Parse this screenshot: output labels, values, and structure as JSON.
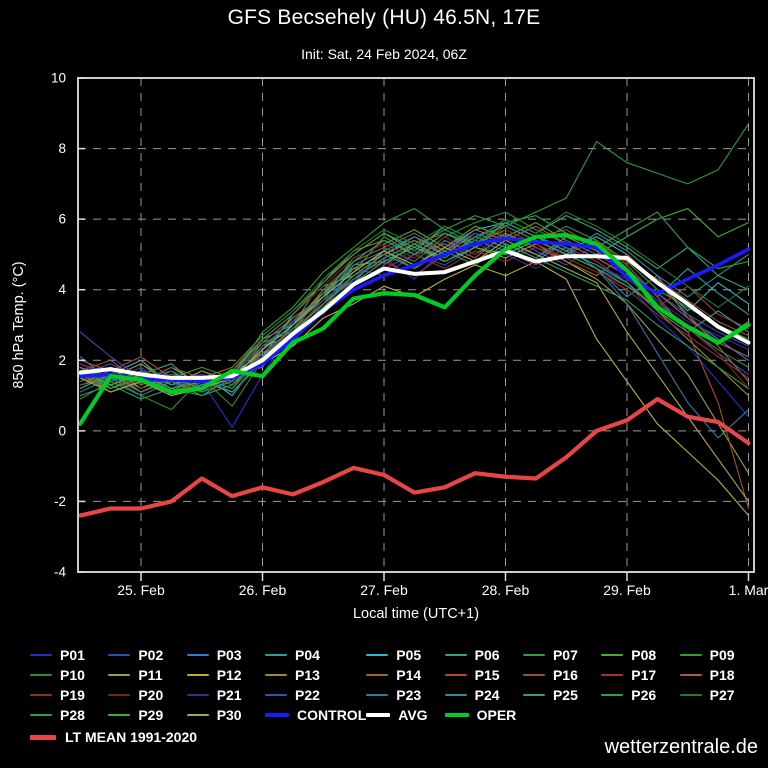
{
  "title": "GFS Becsehely (HU) 46.5N, 17E",
  "subtitle": "Init: Sat, 24 Feb 2024, 06Z",
  "watermark": "wetterzentrale.de",
  "chart_data": {
    "type": "line",
    "title": "GFS Becsehely (HU) 46.5N, 17E",
    "subtitle": "Init: Sat, 24 Feb 2024, 06Z",
    "xlabel": "Local time (UTC+1)",
    "ylabel": "850 hPa Temp. (°C)",
    "ylim": [
      -4,
      10
    ],
    "yticks": [
      10,
      8,
      6,
      4,
      2,
      0,
      -2,
      -4
    ],
    "grid_yticks": [
      8,
      6,
      4,
      2,
      0,
      -2
    ],
    "grid": "dashed",
    "background": "#000000",
    "frame_color": "#cccccc",
    "grid_color": "#999999",
    "legend_position": "bottom",
    "x_hours": [
      0,
      6,
      12,
      18,
      24,
      30,
      36,
      42,
      48,
      54,
      60,
      66,
      72,
      78,
      84,
      90,
      96,
      102,
      108,
      114,
      120,
      126,
      132
    ],
    "xticks": [
      {
        "hour": 12,
        "label": "25. Feb"
      },
      {
        "hour": 36,
        "label": "26. Feb"
      },
      {
        "hour": 60,
        "label": "27. Feb"
      },
      {
        "hour": 84,
        "label": "28. Feb"
      },
      {
        "hour": 108,
        "label": "29. Feb"
      },
      {
        "hour": 132,
        "label": "1. Mar"
      }
    ],
    "series": [
      {
        "name": "P01",
        "color": "#2929d6",
        "width": 1.1,
        "values": [
          1.9,
          1.6,
          1.2,
          1.6,
          1.4,
          0.1,
          1.6,
          2.9,
          3.3,
          4.3,
          4.9,
          4.3,
          5.2,
          5.6,
          5.3,
          5.0,
          5.2,
          4.6,
          4.2,
          3.2,
          2.4,
          1.4,
          0.4
        ]
      },
      {
        "name": "P02",
        "color": "#2952b8",
        "width": 1.1,
        "values": [
          1.6,
          1.9,
          1.5,
          1.2,
          1.7,
          1.3,
          2.2,
          2.5,
          3.6,
          4.6,
          4.4,
          5.0,
          4.7,
          5.2,
          5.6,
          5.1,
          4.7,
          5.3,
          4.4,
          3.6,
          3.0,
          2.2,
          1.6
        ]
      },
      {
        "name": "P03",
        "color": "#2e7dd1",
        "width": 1.1,
        "values": [
          2.1,
          1.4,
          1.8,
          1.0,
          1.3,
          1.6,
          1.8,
          3.1,
          3.9,
          4.2,
          5.1,
          4.6,
          5.4,
          5.0,
          5.5,
          5.4,
          5.0,
          4.6,
          3.8,
          4.4,
          3.2,
          2.6,
          2.0
        ]
      },
      {
        "name": "P04",
        "color": "#28a0a0",
        "width": 1.1,
        "values": [
          1.5,
          1.8,
          1.3,
          1.7,
          1.1,
          1.4,
          2.4,
          2.7,
          3.4,
          4.7,
          4.8,
          5.2,
          4.9,
          5.5,
          5.2,
          4.8,
          5.4,
          5.0,
          4.6,
          3.8,
          4.6,
          3.9,
          3.3
        ]
      },
      {
        "name": "P05",
        "color": "#30b5c9",
        "width": 1.1,
        "values": [
          1.2,
          1.6,
          2.0,
          1.3,
          1.6,
          1.0,
          2.1,
          3.3,
          4.1,
          4.4,
          5.0,
          5.5,
          5.1,
          5.7,
          5.9,
          5.5,
          5.1,
          5.5,
          5.0,
          4.2,
          3.4,
          4.2,
          3.6
        ]
      },
      {
        "name": "P06",
        "color": "#2aa876",
        "width": 1.1,
        "values": [
          1.8,
          1.3,
          1.6,
          1.9,
          1.2,
          1.7,
          2.6,
          3.0,
          4.3,
          5.0,
          5.6,
          5.1,
          5.8,
          5.4,
          6.0,
          5.6,
          6.1,
          5.7,
          5.2,
          4.6,
          5.2,
          4.4,
          4.0
        ]
      },
      {
        "name": "P07",
        "color": "#2d9e3f",
        "width": 1.1,
        "values": [
          1.4,
          1.7,
          1.1,
          1.5,
          1.8,
          1.5,
          2.8,
          3.5,
          4.5,
          5.2,
          5.9,
          6.3,
          5.7,
          6.1,
          5.8,
          6.2,
          6.6,
          8.2,
          7.6,
          7.3,
          7.0,
          7.4,
          8.7
        ]
      },
      {
        "name": "P08",
        "color": "#3fae37",
        "width": 1.1,
        "values": [
          1.7,
          1.2,
          1.5,
          1.1,
          1.6,
          1.3,
          2.3,
          3.2,
          3.8,
          4.9,
          5.3,
          5.7,
          5.2,
          5.8,
          5.5,
          5.9,
          5.4,
          5.0,
          5.5,
          6.0,
          6.3,
          5.5,
          5.9
        ]
      },
      {
        "name": "P09",
        "color": "#2f9e2f",
        "width": 1.1,
        "values": [
          1.3,
          1.5,
          1.9,
          1.4,
          1.0,
          1.5,
          2.5,
          2.8,
          4.0,
          4.5,
          5.5,
          5.0,
          5.6,
          5.3,
          5.7,
          5.3,
          5.8,
          5.4,
          4.8,
          4.0,
          3.5,
          3.0,
          2.6
        ]
      },
      {
        "name": "P10",
        "color": "#2e8b2e",
        "width": 1.1,
        "values": [
          0.9,
          1.4,
          1.0,
          0.6,
          1.5,
          0.7,
          2.0,
          3.0,
          3.7,
          4.8,
          5.2,
          4.8,
          5.5,
          5.9,
          6.2,
          5.7,
          5.3,
          4.9,
          4.4,
          3.7,
          2.9,
          2.3,
          1.8
        ]
      },
      {
        "name": "P11",
        "color": "#9e9e3a",
        "width": 1.1,
        "values": [
          1.6,
          1.1,
          1.4,
          1.8,
          1.3,
          1.6,
          2.2,
          2.6,
          3.5,
          4.1,
          4.7,
          5.3,
          4.8,
          5.2,
          4.9,
          5.3,
          4.8,
          4.3,
          3.6,
          2.6,
          1.6,
          0.2,
          -1.2
        ]
      },
      {
        "name": "P12",
        "color": "#b5b52a",
        "width": 1.1,
        "values": [
          1.4,
          1.8,
          1.2,
          1.6,
          1.4,
          1.1,
          1.9,
          2.4,
          3.2,
          3.6,
          4.1,
          3.8,
          4.3,
          4.7,
          4.4,
          4.8,
          4.3,
          2.6,
          1.4,
          0.2,
          -0.6,
          -1.4,
          -2.4
        ]
      },
      {
        "name": "P13",
        "color": "#a8862e",
        "width": 1.1,
        "values": [
          1.8,
          1.5,
          1.9,
          1.3,
          1.7,
          1.4,
          2.4,
          3.1,
          3.9,
          4.6,
          5.0,
          5.4,
          5.0,
          5.6,
          5.3,
          4.9,
          5.5,
          5.1,
          4.5,
          3.4,
          2.6,
          1.8,
          1.0
        ]
      },
      {
        "name": "P14",
        "color": "#a06a28",
        "width": 1.1,
        "values": [
          1.5,
          1.2,
          1.6,
          1.2,
          1.5,
          1.8,
          2.7,
          3.4,
          4.2,
          5.1,
          5.4,
          5.0,
          5.3,
          4.9,
          5.6,
          5.2,
          4.8,
          4.4,
          5.0,
          4.2,
          3.3,
          2.4,
          1.4
        ]
      },
      {
        "name": "P15",
        "color": "#b04a2a",
        "width": 1.1,
        "values": [
          2.0,
          1.7,
          2.1,
          1.5,
          1.2,
          1.5,
          2.1,
          2.9,
          3.6,
          4.3,
          4.9,
          5.3,
          5.6,
          5.2,
          5.8,
          5.4,
          5.0,
          5.4,
          4.7,
          3.8,
          2.8,
          0.8,
          -2.2
        ]
      },
      {
        "name": "P16",
        "color": "#96542e",
        "width": 1.1,
        "values": [
          1.7,
          2.0,
          1.4,
          1.8,
          1.5,
          1.2,
          2.3,
          3.0,
          4.0,
          4.8,
          5.2,
          5.6,
          5.1,
          5.5,
          5.9,
          5.5,
          5.7,
          5.2,
          4.8,
          4.3,
          3.7,
          3.1,
          2.7
        ]
      },
      {
        "name": "P17",
        "color": "#a83232",
        "width": 1.1,
        "values": [
          1.3,
          1.6,
          1.2,
          1.5,
          1.1,
          1.6,
          2.0,
          2.7,
          3.5,
          4.4,
          4.8,
          4.4,
          5.0,
          5.4,
          5.1,
          4.7,
          5.2,
          4.8,
          4.2,
          3.5,
          4.1,
          3.3,
          2.9
        ]
      },
      {
        "name": "P18",
        "color": "#b05a46",
        "width": 1.1,
        "values": [
          1.6,
          1.3,
          1.7,
          1.1,
          1.4,
          1.7,
          2.5,
          3.2,
          3.8,
          4.5,
          5.1,
          4.7,
          5.2,
          5.7,
          5.4,
          5.8,
          5.3,
          4.9,
          4.4,
          3.9,
          3.2,
          2.5,
          2.1
        ]
      },
      {
        "name": "P19",
        "color": "#8f3030",
        "width": 1.1,
        "values": [
          1.9,
          1.5,
          1.1,
          1.4,
          1.6,
          1.3,
          2.2,
          2.8,
          3.7,
          4.2,
          4.6,
          5.0,
          4.6,
          5.1,
          4.8,
          5.2,
          4.9,
          4.5,
          4.0,
          3.3,
          2.7,
          2.1,
          1.5
        ]
      },
      {
        "name": "P20",
        "color": "#7a2424",
        "width": 1.1,
        "values": [
          1.4,
          1.7,
          1.3,
          1.6,
          1.2,
          1.5,
          2.6,
          3.3,
          4.1,
          4.9,
          5.3,
          4.9,
          5.5,
          5.0,
          5.7,
          5.3,
          4.9,
          4.5,
          4.1,
          3.6,
          2.9,
          2.2,
          1.2
        ]
      },
      {
        "name": "P21",
        "color": "#30308f",
        "width": 1.1,
        "values": [
          1.7,
          1.4,
          1.8,
          1.2,
          1.6,
          1.1,
          1.9,
          2.6,
          3.4,
          4.1,
          4.7,
          5.1,
          4.8,
          5.3,
          5.0,
          4.6,
          5.1,
          4.7,
          4.3,
          3.7,
          3.1,
          2.7,
          2.3
        ]
      },
      {
        "name": "P22",
        "color": "#3352b0",
        "width": 1.1,
        "values": [
          2.8,
          2.1,
          1.5,
          1.7,
          1.3,
          1.6,
          2.4,
          3.1,
          3.7,
          4.4,
          5.0,
          4.6,
          5.1,
          5.6,
          5.3,
          4.9,
          5.4,
          5.0,
          4.5,
          3.9,
          3.3,
          2.8,
          2.4
        ]
      },
      {
        "name": "P23",
        "color": "#2e7da0",
        "width": 1.1,
        "values": [
          1.1,
          1.5,
          1.0,
          1.4,
          1.1,
          1.4,
          2.2,
          2.9,
          3.8,
          4.7,
          5.1,
          5.5,
          5.0,
          5.4,
          5.1,
          5.5,
          5.2,
          4.6,
          3.6,
          2.2,
          0.8,
          -0.2,
          0.6
        ]
      },
      {
        "name": "P24",
        "color": "#2a8f8f",
        "width": 1.1,
        "values": [
          1.8,
          1.4,
          1.7,
          1.3,
          1.5,
          1.2,
          2.1,
          2.8,
          3.6,
          4.3,
          4.9,
          5.3,
          4.9,
          5.5,
          5.8,
          5.4,
          5.0,
          5.6,
          5.1,
          4.4,
          3.8,
          4.4,
          5.0
        ]
      },
      {
        "name": "P25",
        "color": "#2f9e78",
        "width": 1.1,
        "values": [
          1.2,
          1.6,
          1.1,
          1.5,
          1.2,
          1.5,
          2.3,
          3.0,
          3.9,
          4.8,
          5.4,
          5.0,
          5.6,
          5.2,
          5.9,
          5.5,
          5.1,
          4.7,
          4.2,
          3.4,
          2.8,
          3.4,
          2.8
        ]
      },
      {
        "name": "P26",
        "color": "#2fa04a",
        "width": 1.1,
        "values": [
          1.6,
          1.2,
          1.5,
          1.1,
          1.3,
          1.6,
          2.6,
          3.3,
          4.2,
          5.0,
          5.6,
          5.2,
          5.7,
          5.3,
          5.9,
          6.1,
          5.6,
          5.2,
          5.7,
          6.2,
          5.2,
          4.6,
          4.8
        ]
      },
      {
        "name": "P27",
        "color": "#237a33",
        "width": 1.1,
        "values": [
          1.4,
          1.8,
          1.3,
          1.6,
          1.4,
          1.7,
          2.7,
          3.4,
          4.3,
          5.1,
          5.7,
          5.3,
          5.8,
          5.4,
          6.0,
          5.6,
          6.2,
          5.8,
          5.3,
          4.7,
          4.1,
          3.5,
          4.1
        ]
      },
      {
        "name": "P28",
        "color": "#2e9e50",
        "width": 1.1,
        "values": [
          1.0,
          1.3,
          0.9,
          1.2,
          1.0,
          1.3,
          2.1,
          2.8,
          3.6,
          4.4,
          5.0,
          4.6,
          5.1,
          4.7,
          5.3,
          4.9,
          4.5,
          4.1,
          3.7,
          3.0,
          2.4,
          1.8,
          1.2
        ]
      },
      {
        "name": "P29",
        "color": "#38b038",
        "width": 1.1,
        "values": [
          1.7,
          1.3,
          1.6,
          1.2,
          1.4,
          1.1,
          2.0,
          2.7,
          3.5,
          4.2,
          4.8,
          5.2,
          4.8,
          5.2,
          5.0,
          5.4,
          5.0,
          4.6,
          4.1,
          3.5,
          2.9,
          2.5,
          3.1
        ]
      },
      {
        "name": "P30",
        "color": "#a8a852",
        "width": 1.1,
        "values": [
          1.5,
          1.1,
          1.4,
          1.0,
          1.2,
          1.5,
          2.3,
          3.0,
          3.8,
          4.5,
          5.1,
          4.7,
          5.2,
          4.8,
          5.4,
          5.0,
          4.6,
          4.2,
          2.8,
          1.6,
          0.4,
          -0.8,
          -2.0
        ]
      },
      {
        "name": "LT MEAN 1991-2020",
        "color": "#e84545",
        "width": 4.2,
        "values": [
          -2.4,
          -2.2,
          -2.2,
          -2.0,
          -1.35,
          -1.85,
          -1.6,
          -1.8,
          -1.45,
          -1.05,
          -1.25,
          -1.75,
          -1.6,
          -1.2,
          -1.3,
          -1.35,
          -0.75,
          0.0,
          0.3,
          0.9,
          0.4,
          0.25,
          -0.35
        ]
      },
      {
        "name": "CONTROL",
        "color": "#1a1aff",
        "width": 3.6,
        "values": [
          1.55,
          1.6,
          1.45,
          1.45,
          1.4,
          1.5,
          1.9,
          2.6,
          3.4,
          4.0,
          4.4,
          4.7,
          5.0,
          5.3,
          5.45,
          5.35,
          5.3,
          5.2,
          4.35,
          3.9,
          4.3,
          4.7,
          5.15
        ]
      },
      {
        "name": "AVG",
        "color": "#ffffff",
        "width": 4.0,
        "values": [
          1.65,
          1.75,
          1.6,
          1.5,
          1.5,
          1.55,
          2.0,
          2.75,
          3.4,
          4.15,
          4.6,
          4.45,
          4.5,
          4.8,
          5.1,
          4.8,
          4.95,
          4.95,
          4.9,
          4.2,
          3.6,
          2.95,
          2.5
        ]
      },
      {
        "name": "OPER",
        "color": "#00cc22",
        "width": 4.2,
        "values": [
          0.2,
          1.55,
          1.45,
          1.1,
          1.2,
          1.7,
          1.55,
          2.5,
          2.9,
          3.75,
          3.9,
          3.85,
          3.5,
          4.4,
          5.15,
          5.5,
          5.55,
          5.3,
          4.55,
          3.5,
          2.95,
          2.5,
          3.0
        ]
      }
    ]
  },
  "legend": {
    "items": [
      {
        "label": "P01",
        "color": "#2929d6"
      },
      {
        "label": "P02",
        "color": "#2952b8"
      },
      {
        "label": "P03",
        "color": "#2e7dd1"
      },
      {
        "label": "P04",
        "color": "#28a0a0"
      },
      {
        "label": "P05",
        "color": "#30b5c9"
      },
      {
        "label": "P06",
        "color": "#2aa876"
      },
      {
        "label": "P07",
        "color": "#2d9e3f"
      },
      {
        "label": "P08",
        "color": "#3fae37"
      },
      {
        "label": "P09",
        "color": "#2f9e2f"
      },
      {
        "label": "P10",
        "color": "#2e8b2e"
      },
      {
        "label": "P11",
        "color": "#9e9e3a"
      },
      {
        "label": "P12",
        "color": "#b5b52a"
      },
      {
        "label": "P13",
        "color": "#a8862e"
      },
      {
        "label": "P14",
        "color": "#a06a28"
      },
      {
        "label": "P15",
        "color": "#b04a2a"
      },
      {
        "label": "P16",
        "color": "#96542e"
      },
      {
        "label": "P17",
        "color": "#a83232"
      },
      {
        "label": "P18",
        "color": "#b05a46"
      },
      {
        "label": "P19",
        "color": "#8f3030"
      },
      {
        "label": "P20",
        "color": "#7a2424"
      },
      {
        "label": "P21",
        "color": "#30308f"
      },
      {
        "label": "P22",
        "color": "#3352b0"
      },
      {
        "label": "P23",
        "color": "#2e7da0"
      },
      {
        "label": "P24",
        "color": "#2a8f8f"
      },
      {
        "label": "P25",
        "color": "#2f9e78"
      },
      {
        "label": "P26",
        "color": "#2fa04a"
      },
      {
        "label": "P27",
        "color": "#237a33"
      },
      {
        "label": "P28",
        "color": "#2e9e50"
      },
      {
        "label": "P29",
        "color": "#38b038"
      },
      {
        "label": "P30",
        "color": "#a8a852"
      },
      {
        "label": "CONTROL",
        "color": "#1a1aff",
        "thick": true
      },
      {
        "label": "AVG",
        "color": "#ffffff",
        "thick": true
      },
      {
        "label": "OPER",
        "color": "#00cc22",
        "thick": true
      }
    ],
    "lt_mean": {
      "label": "LT MEAN 1991-2020",
      "color": "#e84545"
    }
  }
}
